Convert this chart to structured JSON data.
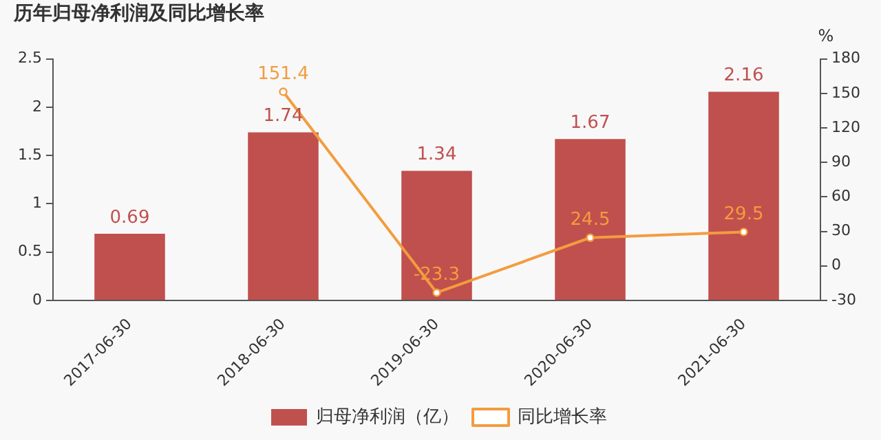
{
  "chart_data": {
    "type": "bar",
    "title": "历年归母净利润及同比增长率",
    "y2label": "%",
    "categories": [
      "2017-06-30",
      "2018-06-30",
      "2019-06-30",
      "2020-06-30",
      "2021-06-30"
    ],
    "series": [
      {
        "name": "归母净利润（亿）",
        "color": "#c0504d",
        "values": [
          0.69,
          1.74,
          1.34,
          1.67,
          2.16
        ]
      },
      {
        "name": "同比增长率",
        "type": "line",
        "axis": "y2",
        "color": "#f39c3f",
        "marker": "circle",
        "values": [
          null,
          151.4,
          -23.3,
          24.5,
          29.5
        ]
      }
    ],
    "ylim": [
      0,
      2.5
    ],
    "yticks": [
      0,
      0.5,
      1,
      1.5,
      2,
      2.5
    ],
    "y2lim": [
      -30,
      180
    ],
    "y2ticks": [
      -30,
      0,
      30,
      60,
      90,
      120,
      150,
      180
    ],
    "data_labels": true,
    "grid": false,
    "legend": "bottom"
  }
}
